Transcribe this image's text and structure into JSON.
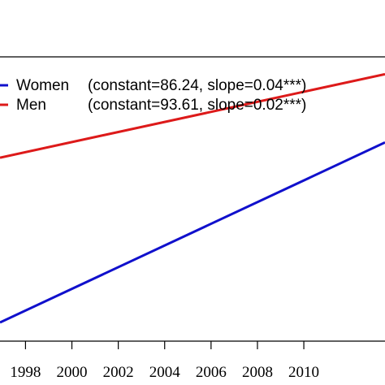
{
  "chart_data": {
    "type": "line",
    "x_ticks": [
      "1998",
      "2000",
      "2002",
      "2004",
      "2006",
      "2008",
      "2010"
    ],
    "xlim": [
      1996.9,
      2013.5
    ],
    "ylim": [
      86.4,
      94.3
    ],
    "grid": false,
    "legend_position": "top-left",
    "series": [
      {
        "name": "Women",
        "legend_label": "Women",
        "legend_note": "(constant=86.24, slope=0.04***)",
        "color": "#1010cc",
        "x": [
          1996.9,
          2013.5
        ],
        "y": [
          86.92,
          91.92
        ]
      },
      {
        "name": "Men",
        "legend_label": "Men",
        "legend_note": "(constant=93.61, slope=0.02***)",
        "color": "#dd1a1a",
        "x": [
          1996.9,
          2013.5
        ],
        "y": [
          91.5,
          93.82
        ]
      }
    ]
  }
}
